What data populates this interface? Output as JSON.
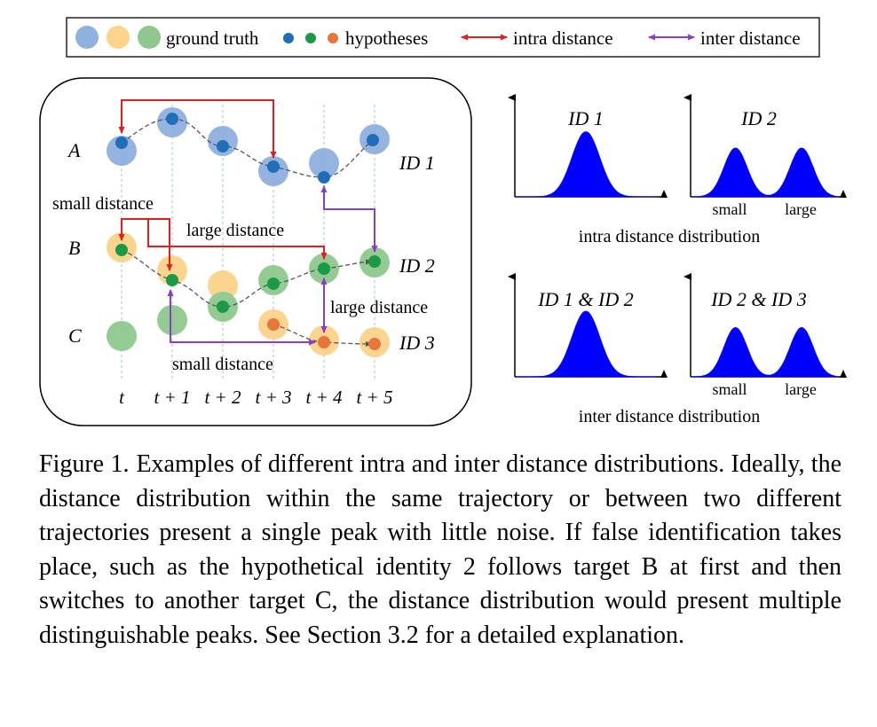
{
  "legend": {
    "ground_truth": "ground truth",
    "hypotheses": "hypotheses",
    "intra_distance": "intra distance",
    "inter_distance": "inter distance"
  },
  "trajectory_diagram": {
    "targets": [
      "A",
      "B",
      "C"
    ],
    "identities": [
      "ID 1",
      "ID 2",
      "ID 3"
    ],
    "time_labels": [
      "t",
      "t + 1",
      "t + 2",
      "t + 3",
      "t + 4",
      "t + 5"
    ],
    "annotations": {
      "small_distance_top": "small distance",
      "large_distance_mid": "large distance",
      "large_distance_right": "large distance",
      "small_distance_bottom": "small distance"
    },
    "colors": {
      "gt_blue": "#8fb1de",
      "gt_orange": "#fbd38a",
      "gt_green": "#8fc88f",
      "hyp_blue": "#1f6fb8",
      "hyp_green": "#1a9a45",
      "hyp_orange": "#e6763a",
      "intra_arrow": "#e41d1d",
      "inter_arrow": "#8a3fc2"
    }
  },
  "chart_data": [
    {
      "type": "area",
      "title": "ID 1",
      "peaks": [
        {
          "mean": 0.5,
          "sd": 0.1,
          "height": 1.0
        }
      ],
      "xlim": [
        0,
        1
      ],
      "ylim": [
        0,
        1.5
      ],
      "tick_labels": [],
      "caption": "intra distance distribution"
    },
    {
      "type": "area",
      "title": "ID 2",
      "peaks": [
        {
          "mean": 0.3,
          "sd": 0.08,
          "height": 0.75
        },
        {
          "mean": 0.76,
          "sd": 0.08,
          "height": 0.75
        }
      ],
      "xlim": [
        0,
        1
      ],
      "ylim": [
        0,
        1.5
      ],
      "tick_labels": [
        "small",
        "large"
      ],
      "caption": "intra distance distribution"
    },
    {
      "type": "area",
      "title": "ID 1 & ID 2",
      "peaks": [
        {
          "mean": 0.5,
          "sd": 0.1,
          "height": 1.0
        }
      ],
      "xlim": [
        0,
        1
      ],
      "ylim": [
        0,
        1.5
      ],
      "tick_labels": [],
      "caption": "inter distance distribution"
    },
    {
      "type": "area",
      "title": "ID 2 & ID 3",
      "peaks": [
        {
          "mean": 0.3,
          "sd": 0.08,
          "height": 0.75
        },
        {
          "mean": 0.76,
          "sd": 0.08,
          "height": 0.75
        }
      ],
      "xlim": [
        0,
        1
      ],
      "ylim": [
        0,
        1.5
      ],
      "tick_labels": [
        "small",
        "large"
      ],
      "caption": "inter distance distribution"
    }
  ],
  "distribution_labels": {
    "intra": "intra distance distribution",
    "inter": "inter distance distribution"
  },
  "caption": {
    "label": "Figure 1.",
    "text": "Examples of different intra and inter distance distributions. Ideally, the distance distribution within the same trajectory or between two different trajectories present a single peak with little noise.  If false identification takes place, such as the hypothetical identity 2 follows target B at first and then switches to another target C, the distance distribution would present multiple distinguishable peaks. See Section 3.2 for a detailed explanation."
  }
}
